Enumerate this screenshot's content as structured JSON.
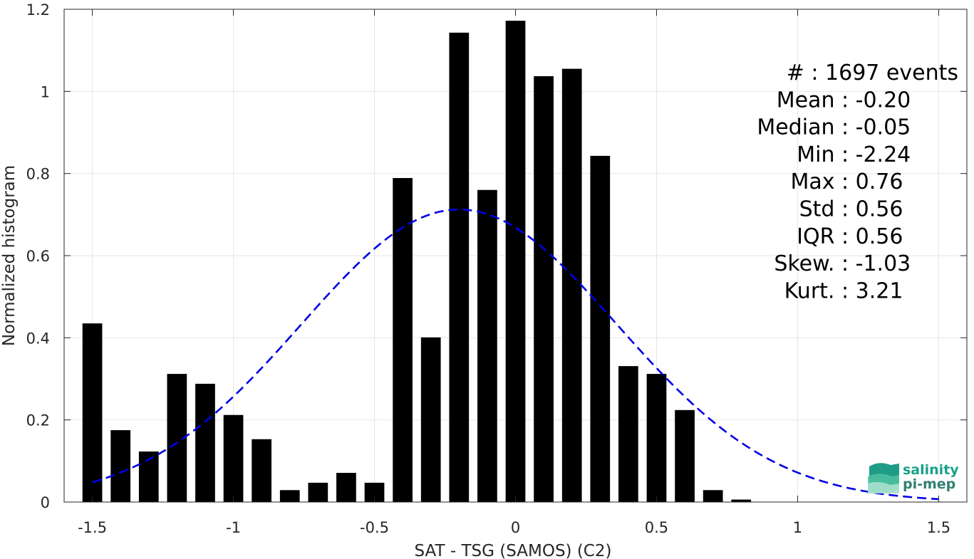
{
  "chart_data": {
    "type": "bar",
    "xlabel": "SAT - TSG (SAMOS) (C2)",
    "ylabel": "Normalized histogram",
    "xlim": [
      -1.6,
      1.6
    ],
    "ylim": [
      0,
      1.2
    ],
    "xticks": [
      -1.5,
      -1,
      -0.5,
      0,
      0.5,
      1,
      1.5
    ],
    "xtick_labels": [
      "-1.5",
      "-1",
      "-0.5",
      "0",
      "0.5",
      "1",
      "1.5"
    ],
    "yticks": [
      0,
      0.2,
      0.4,
      0.6,
      0.8,
      1,
      1.2
    ],
    "ytick_labels": [
      "0",
      "0.2",
      "0.4",
      "0.6",
      "0.8",
      "1",
      "1.2"
    ],
    "grid": true,
    "bin_width": 0.1,
    "bars": [
      {
        "x": -1.5,
        "y": 0.435
      },
      {
        "x": -1.4,
        "y": 0.175
      },
      {
        "x": -1.3,
        "y": 0.123
      },
      {
        "x": -1.2,
        "y": 0.312
      },
      {
        "x": -1.1,
        "y": 0.288
      },
      {
        "x": -1.0,
        "y": 0.212
      },
      {
        "x": -0.9,
        "y": 0.153
      },
      {
        "x": -0.8,
        "y": 0.029
      },
      {
        "x": -0.7,
        "y": 0.047
      },
      {
        "x": -0.6,
        "y": 0.071
      },
      {
        "x": -0.5,
        "y": 0.047
      },
      {
        "x": -0.4,
        "y": 0.789
      },
      {
        "x": -0.3,
        "y": 0.401
      },
      {
        "x": -0.2,
        "y": 1.143
      },
      {
        "x": -0.1,
        "y": 0.76
      },
      {
        "x": 0.0,
        "y": 1.172
      },
      {
        "x": 0.1,
        "y": 1.037
      },
      {
        "x": 0.2,
        "y": 1.055
      },
      {
        "x": 0.3,
        "y": 0.843
      },
      {
        "x": 0.4,
        "y": 0.331
      },
      {
        "x": 0.5,
        "y": 0.312
      },
      {
        "x": 0.6,
        "y": 0.224
      },
      {
        "x": 0.7,
        "y": 0.029
      },
      {
        "x": 0.8,
        "y": 0.006
      }
    ],
    "fit_curve": {
      "style": "dashed",
      "color": "#0000e6",
      "mean": -0.2,
      "std": 0.56,
      "x_range": [
        -1.5,
        1.5
      ]
    },
    "colors": {
      "bars": "#000000",
      "grid": "#e6e6e6",
      "axes": "#262626"
    },
    "stats_placement": "top-right",
    "stats_text": [
      "#  : 1697 events",
      "Mean : -0.20",
      "Median : -0.05",
      "Min : -2.24",
      "Max : 0.76",
      "Std : 0.56",
      "IQR : 0.56",
      "Skew. : -1.03",
      "Kurt. : 3.21"
    ]
  },
  "logo": {
    "line1": "salinity",
    "line2": "pi-mep",
    "icon": "salinity-waves-icon"
  }
}
